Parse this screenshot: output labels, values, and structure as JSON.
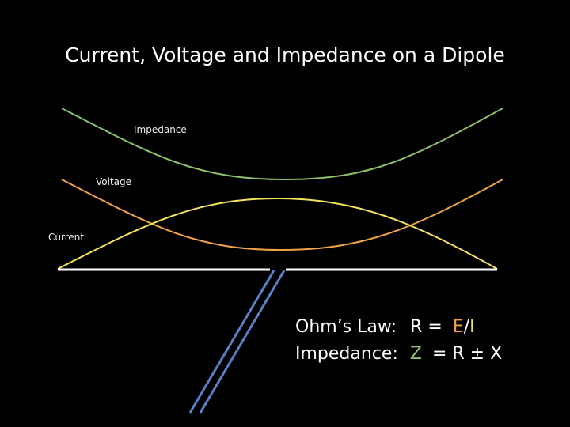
{
  "title": "Current, Voltage and Impedance on a Dipole",
  "curves": {
    "impedance": "Impedance",
    "voltage": "Voltage",
    "current": "Current"
  },
  "formulas": [
    {
      "label": "Ohm’s Law:",
      "parts": [
        "R =",
        "E",
        "/",
        "I"
      ]
    },
    {
      "label": "Impedance:",
      "parts": [
        "Z",
        "= R ± X"
      ]
    }
  ]
}
